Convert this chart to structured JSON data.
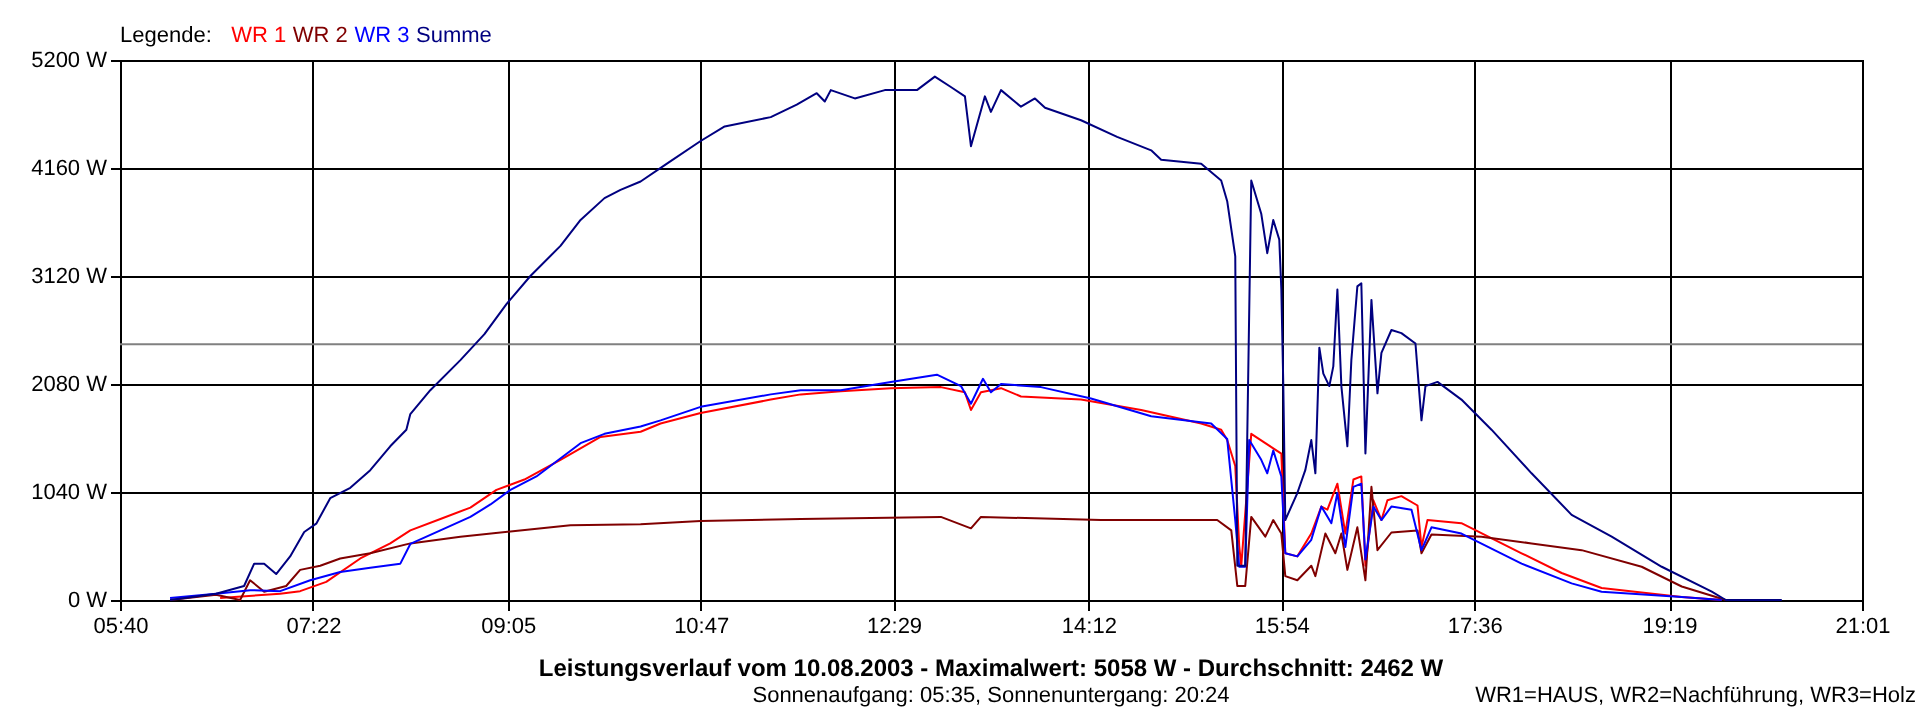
{
  "chart_data": {
    "type": "line",
    "title": "Leistungsverlauf vom 10.08.2003 - Maximalwert: 5058 W - Durchschnitt: 2462 W",
    "subtitle": "Sonnenaufgang: 05:35, Sonnenuntergang: 20:24",
    "legend_title": "Legende:",
    "annotations": [
      "WR1=HAUS, WR2=Nachführung, WR3=Holz"
    ],
    "xlim": [
      5.6667,
      21.0167
    ],
    "xticks": [
      {
        "value": 5.6667,
        "label": "05:40"
      },
      {
        "value": 7.3667,
        "label": "07:22"
      },
      {
        "value": 9.0833,
        "label": "09:05"
      },
      {
        "value": 10.7833,
        "label": "10:47"
      },
      {
        "value": 12.4833,
        "label": "12:29"
      },
      {
        "value": 14.2,
        "label": "14:12"
      },
      {
        "value": 15.9,
        "label": "15:54"
      },
      {
        "value": 17.6,
        "label": "17:36"
      },
      {
        "value": 19.3167,
        "label": "19:19"
      },
      {
        "value": 21.0167,
        "label": "21:01"
      }
    ],
    "ylim": [
      0,
      5200
    ],
    "yticks": [
      {
        "value": 0,
        "label": "0 W"
      },
      {
        "value": 1040,
        "label": "1040 W"
      },
      {
        "value": 2080,
        "label": "2080 W"
      },
      {
        "value": 3120,
        "label": "3120 W"
      },
      {
        "value": 4160,
        "label": "4160 W"
      },
      {
        "value": 5200,
        "label": "5200 W"
      }
    ],
    "grid": true,
    "legend": "top left",
    "ref_lines": [
      {
        "axis": "y",
        "value": 2462,
        "color": "#808080"
      }
    ],
    "series": [
      {
        "name": "WR 1",
        "color": "#ff0000",
        "x": [
          6.549,
          7.078,
          7.254,
          7.484,
          7.784,
          8.048,
          8.225,
          8.49,
          8.754,
          8.984,
          9.23,
          9.548,
          9.901,
          10.254,
          10.43,
          10.783,
          11.401,
          11.665,
          12.018,
          12.459,
          12.9,
          13.112,
          13.165,
          13.253,
          13.43,
          13.606,
          14.135,
          14.665,
          15.194,
          15.37,
          15.423,
          15.494,
          15.529,
          15.547,
          15.635,
          15.759,
          15.9,
          15.935,
          16.041,
          16.164,
          16.253,
          16.306,
          16.394,
          16.464,
          16.535,
          16.605,
          16.641,
          16.711,
          16.782,
          16.835,
          16.958,
          17.1,
          17.135,
          17.188,
          17.487,
          18.017,
          18.37,
          18.722,
          19.428,
          19.781
        ],
        "values": [
          20,
          60,
          85,
          175,
          400,
          545,
          670,
          780,
          890,
          1060,
          1160,
          1350,
          1570,
          1620,
          1700,
          1800,
          1930,
          1980,
          2010,
          2040,
          2050,
          2000,
          1830,
          2000,
          2040,
          1960,
          1930,
          1830,
          1700,
          1640,
          1540,
          1290,
          520,
          330,
          1600,
          1510,
          1410,
          450,
          420,
          640,
          900,
          870,
          1120,
          640,
          1160,
          1190,
          330,
          960,
          770,
          960,
          1000,
          910,
          510,
          770,
          740,
          450,
          260,
          115,
          30,
          0
        ]
      },
      {
        "name": "WR 2",
        "color": "#800000",
        "x": [
          6.108,
          6.513,
          6.725,
          6.813,
          6.937,
          7.131,
          7.254,
          7.431,
          7.607,
          7.872,
          8.225,
          8.666,
          9.107,
          9.636,
          10.254,
          10.783,
          11.665,
          12.9,
          13.165,
          13.253,
          14.312,
          15.335,
          15.459,
          15.512,
          15.582,
          15.635,
          15.759,
          15.829,
          15.9,
          15.935,
          16.041,
          16.164,
          16.2,
          16.288,
          16.376,
          16.429,
          16.482,
          16.57,
          16.641,
          16.694,
          16.747,
          16.87,
          17.1,
          17.135,
          17.223,
          17.664,
          18.105,
          18.546,
          19.075,
          19.428,
          19.816
        ],
        "values": [
          0,
          50,
          0,
          190,
          80,
          135,
          290,
          330,
          400,
          450,
          545,
          610,
          660,
          720,
          730,
          760,
          780,
          800,
          690,
          800,
          770,
          770,
          670,
          135,
          135,
          800,
          610,
          770,
          640,
          230,
          190,
          330,
          230,
          640,
          450,
          640,
          290,
          700,
          190,
          1090,
          480,
          650,
          670,
          450,
          630,
          610,
          545,
          480,
          320,
          130,
          0
        ]
      },
      {
        "name": "WR 3",
        "color": "#0000ff",
        "x": [
          6.108,
          6.513,
          6.813,
          7.078,
          7.343,
          7.607,
          7.872,
          8.137,
          8.225,
          8.49,
          8.754,
          8.931,
          9.107,
          9.336,
          9.725,
          9.936,
          10.254,
          10.43,
          10.783,
          11.401,
          11.665,
          12.018,
          12.459,
          12.865,
          13.077,
          13.165,
          13.271,
          13.341,
          13.43,
          13.782,
          14.223,
          14.753,
          15.282,
          15.423,
          15.494,
          15.529,
          15.582,
          15.617,
          15.723,
          15.776,
          15.829,
          15.9,
          15.935,
          16.041,
          16.164,
          16.253,
          16.341,
          16.394,
          16.464,
          16.535,
          16.605,
          16.641,
          16.711,
          16.782,
          16.87,
          17.047,
          17.135,
          17.223,
          17.487,
          18.017,
          18.458,
          18.722,
          19.428,
          19.781
        ],
        "values": [
          20,
          60,
          95,
          85,
          190,
          270,
          310,
          350,
          540,
          670,
          800,
          920,
          1060,
          1190,
          1510,
          1600,
          1670,
          1730,
          1860,
          1980,
          2020,
          2020,
          2100,
          2170,
          2060,
          1890,
          2130,
          2000,
          2080,
          2050,
          1940,
          1770,
          1700,
          1550,
          770,
          320,
          320,
          1540,
          1350,
          1220,
          1440,
          1190,
          450,
          420,
          580,
          900,
          740,
          1030,
          510,
          1090,
          1120,
          390,
          900,
          770,
          900,
          870,
          480,
          700,
          640,
          350,
          160,
          80,
          30,
          0
        ]
      },
      {
        "name": "Summe",
        "color": "#000080",
        "x": [
          6.108,
          6.513,
          6.76,
          6.849,
          6.937,
          7.043,
          7.166,
          7.29,
          7.396,
          7.519,
          7.696,
          7.872,
          8.048,
          8.19,
          8.225,
          8.401,
          8.666,
          8.878,
          9.072,
          9.283,
          9.548,
          9.725,
          9.936,
          10.077,
          10.254,
          10.483,
          10.783,
          10.995,
          11.401,
          11.63,
          11.806,
          11.877,
          11.93,
          12.142,
          12.406,
          12.689,
          12.847,
          12.988,
          13.112,
          13.165,
          13.288,
          13.341,
          13.43,
          13.606,
          13.729,
          13.818,
          14.135,
          14.453,
          14.753,
          14.841,
          15.194,
          15.37,
          15.423,
          15.494,
          15.512,
          15.582,
          15.635,
          15.723,
          15.776,
          15.829,
          15.882,
          15.9,
          15.917,
          15.935,
          16.041,
          16.111,
          16.164,
          16.2,
          16.235,
          16.27,
          16.323,
          16.358,
          16.394,
          16.429,
          16.482,
          16.517,
          16.57,
          16.605,
          16.641,
          16.694,
          16.747,
          16.782,
          16.87,
          16.958,
          17.082,
          17.135,
          17.17,
          17.276,
          17.487,
          17.752,
          18.105,
          18.458,
          18.811,
          19.252,
          19.693,
          19.816,
          20.31
        ],
        "values": [
          0,
          60,
          135,
          350,
          350,
          250,
          420,
          655,
          735,
          980,
          1080,
          1250,
          1480,
          1640,
          1790,
          2020,
          2310,
          2560,
          2850,
          3120,
          3410,
          3660,
          3870,
          3950,
          4030,
          4200,
          4420,
          4560,
          4650,
          4770,
          4880,
          4800,
          4910,
          4830,
          4910,
          4910,
          5040,
          4940,
          4850,
          4370,
          4850,
          4700,
          4910,
          4750,
          4830,
          4740,
          4620,
          4460,
          4330,
          4240,
          4200,
          4040,
          3840,
          3310,
          330,
          330,
          4040,
          3720,
          3340,
          3660,
          3470,
          2990,
          2090,
          770,
          1030,
          1250,
          1540,
          1220,
          2430,
          2180,
          2060,
          2250,
          2990,
          2060,
          1480,
          2310,
          3020,
          3050,
          1410,
          2890,
          1990,
          2380,
          2600,
          2570,
          2470,
          1730,
          2060,
          2100,
          1930,
          1640,
          1220,
          820,
          610,
          320,
          80,
          0,
          0
        ]
      }
    ]
  }
}
